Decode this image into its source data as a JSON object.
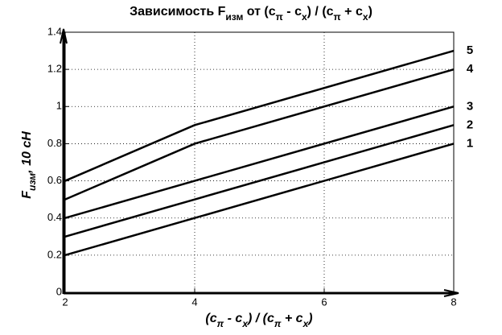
{
  "chart_data": {
    "type": "line",
    "title": [
      "Зависимость F",
      "изм",
      " от (c",
      "π",
      " - c",
      "x",
      ") / (c",
      "π",
      " + c",
      "x",
      ")"
    ],
    "xlabel": [
      "(c",
      "π",
      " - c",
      "x",
      ") / (c",
      "π",
      " + c",
      "x",
      ")"
    ],
    "ylabel": [
      "F",
      "изм",
      ", 10 cH"
    ],
    "x": [
      2,
      4,
      8
    ],
    "series": [
      {
        "name": "1",
        "color": "#000000",
        "values": [
          0.2,
          0.4,
          0.8
        ]
      },
      {
        "name": "2",
        "color": "#000000",
        "values": [
          0.3,
          0.5,
          0.9
        ]
      },
      {
        "name": "3",
        "color": "#000000",
        "values": [
          0.4,
          0.6,
          1.0
        ]
      },
      {
        "name": "4",
        "color": "#000000",
        "values": [
          0.5,
          0.8,
          1.2
        ]
      },
      {
        "name": "5",
        "color": "#000000",
        "values": [
          0.6,
          0.9,
          1.3
        ]
      }
    ],
    "xlim": [
      2,
      8
    ],
    "xticks": [
      2,
      4,
      6,
      8
    ],
    "ylim": [
      0,
      1.4
    ],
    "yticks": [
      0,
      0.2,
      0.4,
      0.6,
      0.8,
      1,
      1.2,
      1.4
    ],
    "grid": true
  }
}
